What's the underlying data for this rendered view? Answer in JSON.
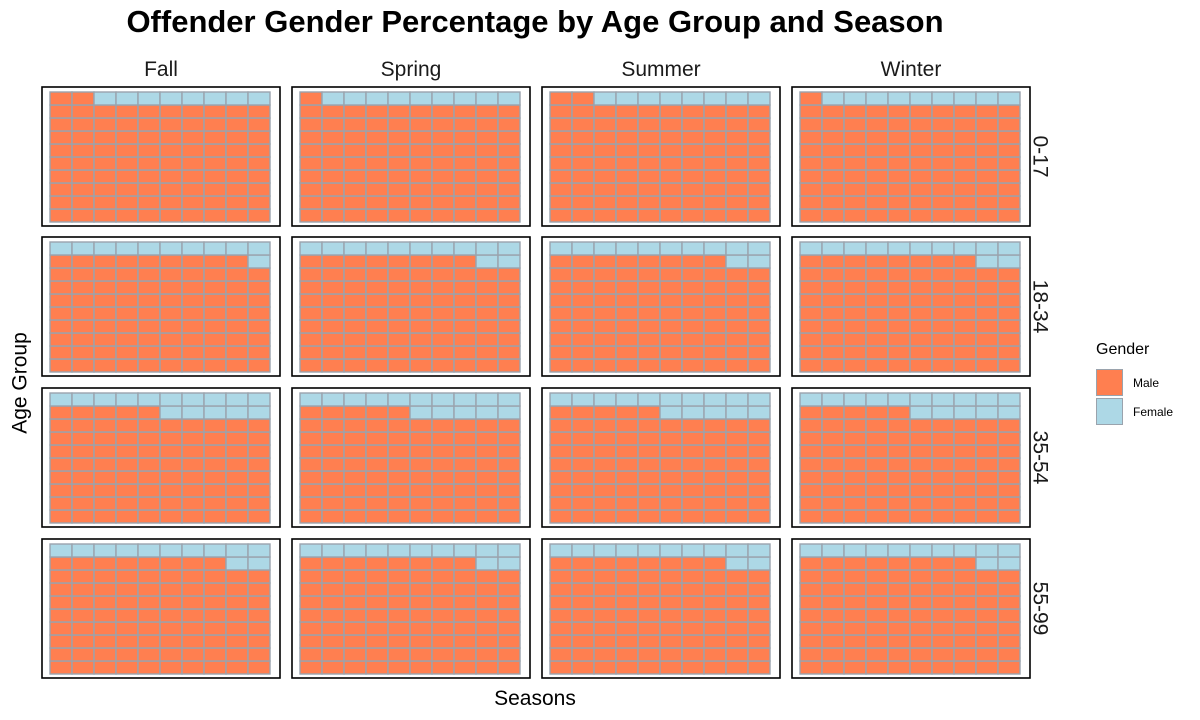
{
  "chart_data": {
    "type": "waffle",
    "title": "Offender Gender Percentage by Age Group and Season",
    "xlabel": "Seasons",
    "ylabel": "Age Group",
    "columns": [
      "Fall",
      "Spring",
      "Summer",
      "Winter"
    ],
    "rows": [
      "0-17",
      "18-34",
      "35-54",
      "55-99"
    ],
    "grid": {
      "cols": 10,
      "rows": 10
    },
    "legend": {
      "title": "Gender",
      "position": "right",
      "entries": [
        {
          "name": "Male",
          "color": "#FF7F50"
        },
        {
          "name": "Female",
          "color": "#ADD8E6"
        }
      ]
    },
    "series": [
      {
        "name": "Male",
        "color": "#FF7F50",
        "values": [
          [
            92,
            91,
            92,
            91
          ],
          [
            89,
            88,
            88,
            88
          ],
          [
            85,
            85,
            85,
            85
          ],
          [
            88,
            88,
            88,
            88
          ]
        ]
      },
      {
        "name": "Female",
        "color": "#ADD8E6",
        "values": [
          [
            8,
            9,
            8,
            9
          ],
          [
            11,
            12,
            12,
            12
          ],
          [
            15,
            15,
            15,
            15
          ],
          [
            12,
            12,
            12,
            12
          ]
        ]
      }
    ]
  }
}
